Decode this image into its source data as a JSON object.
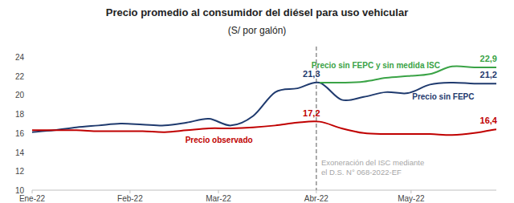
{
  "chart_data": {
    "type": "line",
    "title": "Precio promedio al consumidor del diésel para uso vehicular",
    "subtitle": "(S/ por galón)",
    "x": [
      0,
      7,
      14,
      21,
      28,
      35,
      42,
      49,
      56,
      63,
      70,
      77,
      84,
      91,
      98,
      105,
      112,
      119,
      126,
      133,
      140,
      147
    ],
    "xlim": [
      0,
      147
    ],
    "xticks": [
      {
        "value": 0,
        "label": "Ene-22"
      },
      {
        "value": 31,
        "label": "Feb-22"
      },
      {
        "value": 59,
        "label": "Mar-22"
      },
      {
        "value": 90,
        "label": "Abr-22"
      },
      {
        "value": 120,
        "label": "May-22"
      }
    ],
    "ylim": [
      10,
      24
    ],
    "yticks": [
      10,
      12,
      14,
      16,
      18,
      20,
      22,
      24
    ],
    "grid": false,
    "series": [
      {
        "name": "Precio sin FEPC",
        "color": "#1f3a6e",
        "values": [
          16.1,
          16.3,
          16.6,
          16.8,
          17.0,
          16.9,
          16.8,
          17.1,
          17.5,
          16.8,
          17.8,
          20.3,
          20.7,
          21.3,
          19.5,
          19.8,
          20.3,
          20.2,
          21.1,
          21.3,
          21.2,
          21.2
        ],
        "value_labels": [
          null,
          null,
          null,
          null,
          null,
          null,
          null,
          null,
          null,
          null,
          null,
          null,
          null,
          "21,3",
          null,
          null,
          null,
          null,
          null,
          null,
          null,
          "21,2"
        ]
      },
      {
        "name": "Precio observado",
        "color": "#c00000",
        "values": [
          16.3,
          16.3,
          16.3,
          16.2,
          16.2,
          16.2,
          16.1,
          16.3,
          16.5,
          16.5,
          16.6,
          16.8,
          17.1,
          17.2,
          16.5,
          16.0,
          15.9,
          15.9,
          15.9,
          15.8,
          16.0,
          16.4
        ],
        "value_labels": [
          null,
          null,
          null,
          null,
          null,
          null,
          null,
          null,
          null,
          null,
          null,
          null,
          null,
          "17,2",
          null,
          null,
          null,
          null,
          null,
          null,
          null,
          "16,4"
        ]
      },
      {
        "name": "Precio sin FEPC y sin medida ISC",
        "color": "#3aa346",
        "values": [
          null,
          null,
          null,
          null,
          null,
          null,
          null,
          null,
          null,
          null,
          null,
          null,
          null,
          21.3,
          21.3,
          21.4,
          21.8,
          22.0,
          22.2,
          23.0,
          22.9,
          22.9
        ],
        "value_labels": [
          null,
          null,
          null,
          null,
          null,
          null,
          null,
          null,
          null,
          null,
          null,
          null,
          null,
          null,
          null,
          null,
          null,
          null,
          null,
          null,
          null,
          "22,9"
        ]
      }
    ],
    "annotations": [
      {
        "x": 90,
        "text": [
          "Exoneración del ISC mediante",
          "el D.S. N° 068-2022-EF"
        ],
        "line_style": "dashed"
      }
    ]
  }
}
